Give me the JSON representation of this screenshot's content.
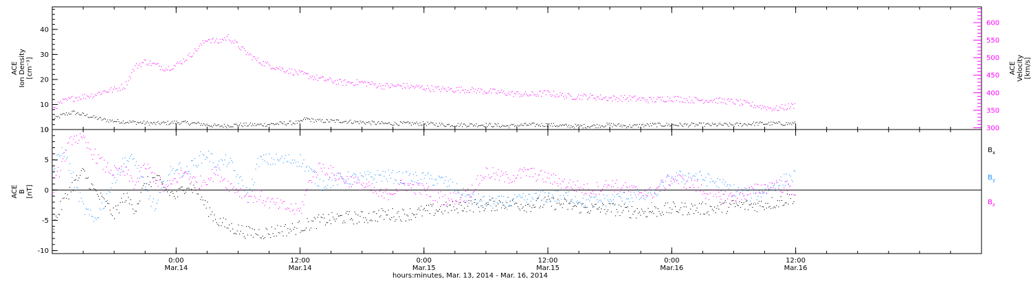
{
  "chart_data": {
    "x_axis": {
      "title": "hours:minutes, Mar. 13, 2014 - Mar. 16, 2014",
      "range_hours": [
        0,
        90
      ],
      "ticks": [
        {
          "hour": 12,
          "time": "0:00",
          "date": "Mar.14"
        },
        {
          "hour": 24,
          "time": "12:00",
          "date": "Mar.14"
        },
        {
          "hour": 36,
          "time": "0:00",
          "date": "Mar.15"
        },
        {
          "hour": 48,
          "time": "12:00",
          "date": "Mar.15"
        },
        {
          "hour": 60,
          "time": "0:00",
          "date": "Mar.16"
        },
        {
          "hour": 72,
          "time": "12:00",
          "date": "Mar.16"
        }
      ],
      "comment": "x values are hours since 12:00 Mar. 13, 2014"
    },
    "panels": [
      {
        "type": "scatter",
        "ylabel_left": [
          "ACE",
          "Ion Density",
          "[cm⁻³]"
        ],
        "ylim": [
          0,
          49
        ],
        "yticks": [
          0,
          10,
          20,
          30,
          40
        ],
        "ylabel_right": [
          "ACE",
          "Velocity",
          "[km/s]"
        ],
        "ylim_right": [
          295,
          645
        ],
        "yticks_right": [
          300,
          350,
          400,
          450,
          500,
          550,
          600
        ],
        "series": [
          {
            "color": "#000000",
            "axis": "left",
            "x": [
              0,
              1,
              2,
              3,
              4,
              5,
              6,
              8,
              10,
              12,
              14,
              16,
              18,
              20,
              22,
              24,
              24.5,
              25,
              26,
              28,
              30,
              32,
              34,
              36,
              38,
              40,
              42,
              44,
              46,
              48,
              50,
              52,
              54,
              56,
              58,
              60,
              62,
              64,
              66,
              68,
              70,
              72
            ],
            "y": [
              4,
              6,
              7,
              6,
              5,
              4,
              3.5,
              3,
              2.5,
              3,
              2.5,
              1.5,
              2,
              2,
              2.5,
              3,
              4.5,
              4,
              3.5,
              3.5,
              3,
              2.5,
              2.5,
              2.5,
              2,
              2,
              2,
              1.5,
              2,
              2,
              1.5,
              1.5,
              2,
              1.5,
              2,
              2,
              2,
              2,
              2,
              2.5,
              2.5,
              2.5
            ]
          },
          {
            "color": "#ff00ff",
            "axis": "right",
            "x": [
              0,
              1,
              2,
              3,
              4,
              5,
              6,
              7,
              8,
              9,
              10,
              11,
              12,
              13,
              14,
              15,
              16,
              17,
              18,
              19,
              20,
              22,
              24,
              26,
              28,
              30,
              32,
              34,
              36,
              38,
              40,
              42,
              44,
              46,
              48,
              50,
              52,
              54,
              56,
              58,
              60,
              62,
              64,
              66,
              68,
              70,
              72
            ],
            "y": [
              355,
              375,
              385,
              390,
              395,
              405,
              410,
              420,
              475,
              490,
              480,
              470,
              480,
              500,
              525,
              555,
              545,
              560,
              535,
              510,
              490,
              470,
              455,
              440,
              430,
              430,
              420,
              420,
              415,
              410,
              410,
              405,
              400,
              395,
              400,
              390,
              390,
              385,
              385,
              380,
              385,
              380,
              380,
              375,
              365,
              355,
              365
            ]
          }
        ]
      },
      {
        "type": "scatter",
        "ylabel_left": [
          "ACE",
          "B",
          "[nT]"
        ],
        "ylim": [
          -10.5,
          10
        ],
        "yticks": [
          -10,
          -5,
          0,
          5,
          10
        ],
        "zero_line": true,
        "series": [
          {
            "name": "B",
            "subscript": "x",
            "color": "#000000",
            "x": [
              0,
              1,
              2,
              3,
              4,
              5,
              6,
              7,
              8,
              9,
              10,
              11,
              12,
              13,
              14,
              15,
              16,
              17,
              18,
              19,
              20,
              21,
              22,
              23,
              24,
              25,
              26,
              28,
              30,
              32,
              34,
              36,
              38,
              40,
              42,
              44,
              46,
              48,
              50,
              52,
              54,
              56,
              58,
              60,
              62,
              64,
              66,
              68,
              70,
              72
            ],
            "y": [
              -6,
              -2,
              1,
              3,
              0,
              -2,
              -4,
              -1,
              -3,
              1,
              2,
              0,
              -1,
              1,
              0,
              -3,
              -5,
              -6,
              -6.5,
              -7,
              -7,
              -7,
              -6.5,
              -6.5,
              -6,
              -5.5,
              -5,
              -4.5,
              -4.5,
              -4,
              -4,
              -3.5,
              -3,
              -2.5,
              -2.5,
              -2,
              -2.5,
              -2,
              -2.5,
              -3,
              -3,
              -3.5,
              -3.5,
              -3,
              -3,
              -3,
              -2.5,
              -2.5,
              -2,
              -1
            ]
          },
          {
            "name": "B",
            "subscript": "y",
            "color": "#1e90ff",
            "x": [
              0,
              1,
              2,
              3,
              4,
              5,
              6,
              7,
              8,
              9,
              10,
              11,
              12,
              13,
              14,
              15,
              16,
              17,
              18,
              19,
              20,
              21,
              22,
              23,
              24,
              25,
              26,
              28,
              30,
              32,
              34,
              36,
              38,
              40,
              42,
              44,
              46,
              48,
              50,
              52,
              54,
              56,
              58,
              60,
              62,
              64,
              66,
              68,
              70,
              72
            ],
            "y": [
              3,
              7,
              2,
              -3,
              -5,
              -2,
              2,
              5,
              5,
              0,
              -3,
              2,
              4,
              3,
              5,
              6,
              4,
              5,
              2,
              -1,
              5,
              5,
              5,
              5,
              5,
              3,
              1,
              2,
              2,
              2.5,
              2,
              2,
              1.5,
              -1,
              -2,
              -2,
              -1.5,
              -1,
              -1,
              -2,
              -1.5,
              -1,
              -1,
              2,
              2.5,
              1.5,
              0,
              -1,
              1,
              2.5
            ]
          },
          {
            "name": "B",
            "subscript": "z",
            "color": "#ff00ff",
            "x": [
              0,
              1,
              2,
              3,
              4,
              5,
              6,
              7,
              8,
              9,
              10,
              11,
              12,
              13,
              14,
              15,
              16,
              17,
              18,
              19,
              20,
              21,
              22,
              23,
              24,
              25,
              26,
              28,
              30,
              32,
              34,
              36,
              38,
              40,
              42,
              44,
              46,
              48,
              50,
              52,
              54,
              56,
              58,
              60,
              62,
              64,
              66,
              68,
              70,
              72
            ],
            "y": [
              0,
              5,
              9,
              8,
              6,
              4,
              3,
              3,
              1,
              4,
              2,
              0,
              2,
              3,
              1,
              2,
              3,
              1,
              0,
              -1,
              -1,
              -2,
              -2.5,
              -3,
              -3.5,
              2,
              4,
              2,
              1,
              -1,
              1,
              0,
              -1.5,
              -1,
              3,
              2,
              3,
              2,
              1,
              0,
              1,
              0,
              -0.5,
              2,
              1,
              -1,
              -1,
              0,
              1,
              0
            ]
          }
        ]
      }
    ]
  }
}
